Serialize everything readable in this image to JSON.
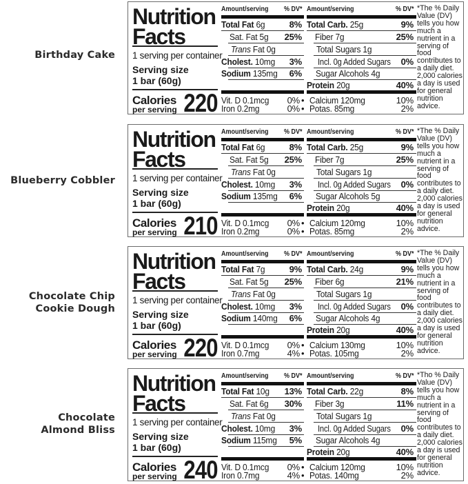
{
  "common": {
    "title_line1": "Nutrition",
    "title_line2": "Facts",
    "servings": "1 serving per container",
    "serving_size_label": "Serving size",
    "serving_size_value": "1 bar (60g)",
    "calories_label": "Calories",
    "per_serving": "per serving",
    "header_amount": "Amount/serving",
    "header_dv": "% DV*",
    "bullet": "•",
    "footnote": "*The % Daily Value (DV) tells you how much a nutrient in a serving of food contributes to a daily diet. 2,000 calories a day is used for general nutrition advice."
  },
  "panels": [
    {
      "flavor": [
        "Birthday Cake"
      ],
      "calories": "220",
      "left_rows": [
        {
          "label": "Total Fat",
          "amount": "6g",
          "dv": "8%"
        },
        {
          "label": "Sat. Fat 5g",
          "amount": "",
          "dv": "25%"
        },
        {
          "label": "Trans",
          "amount": "Fat 0g",
          "dv": ""
        },
        {
          "label": "Cholest.",
          "amount": "10mg",
          "dv": "3%"
        },
        {
          "label": "Sodium",
          "amount": "135mg",
          "dv": "6%"
        }
      ],
      "right_rows": [
        {
          "label": "Total Carb.",
          "amount": "25g",
          "dv": "9%"
        },
        {
          "label": "Fiber 7g",
          "amount": "",
          "dv": "25%"
        },
        {
          "label": "Total Sugars 1g",
          "amount": "",
          "dv": ""
        },
        {
          "label": "Incl. 0g Added Sugars",
          "amount": "",
          "dv": "0%"
        },
        {
          "label": "Sugar Alcohols 4g",
          "amount": "",
          "dv": ""
        },
        {
          "label": "Protein",
          "amount": "20g",
          "dv": "40%"
        }
      ],
      "vitamins": [
        {
          "name": "Vit. D 0.1mcg",
          "dv": "0%"
        },
        {
          "name": "Iron 0.2mg",
          "dv": "0%"
        },
        {
          "name": "Calcium 120mg",
          "dv": "10%"
        },
        {
          "name": "Potas. 85mg",
          "dv": "2%"
        }
      ]
    },
    {
      "flavor": [
        "Blueberry Cobbler"
      ],
      "calories": "210",
      "left_rows": [
        {
          "label": "Total Fat",
          "amount": "6g",
          "dv": "8%"
        },
        {
          "label": "Sat. Fat 5g",
          "amount": "",
          "dv": "25%"
        },
        {
          "label": "Trans",
          "amount": "Fat 0g",
          "dv": ""
        },
        {
          "label": "Cholest.",
          "amount": "10mg",
          "dv": "3%"
        },
        {
          "label": "Sodium",
          "amount": "135mg",
          "dv": "6%"
        }
      ],
      "right_rows": [
        {
          "label": "Total Carb.",
          "amount": "25g",
          "dv": "9%"
        },
        {
          "label": "Fiber 7g",
          "amount": "",
          "dv": "25%"
        },
        {
          "label": "Total Sugars 1g",
          "amount": "",
          "dv": ""
        },
        {
          "label": "Incl. 0g Added Sugars",
          "amount": "",
          "dv": "0%"
        },
        {
          "label": "Sugar Alcohols 5g",
          "amount": "",
          "dv": ""
        },
        {
          "label": "Protein",
          "amount": "20g",
          "dv": "40%"
        }
      ],
      "vitamins": [
        {
          "name": "Vit. D 0.1mcg",
          "dv": "0%"
        },
        {
          "name": "Iron 0.2mg",
          "dv": "0%"
        },
        {
          "name": "Calcium 120mg",
          "dv": "10%"
        },
        {
          "name": "Potas. 85mg",
          "dv": "2%"
        }
      ]
    },
    {
      "flavor": [
        "Chocolate Chip",
        "Cookie Dough"
      ],
      "calories": "220",
      "left_rows": [
        {
          "label": "Total Fat",
          "amount": "7g",
          "dv": "9%"
        },
        {
          "label": "Sat. Fat 5g",
          "amount": "",
          "dv": "25%"
        },
        {
          "label": "Trans",
          "amount": "Fat 0g",
          "dv": ""
        },
        {
          "label": "Cholest.",
          "amount": "10mg",
          "dv": "3%"
        },
        {
          "label": "Sodium",
          "amount": "140mg",
          "dv": "6%"
        }
      ],
      "right_rows": [
        {
          "label": "Total Carb.",
          "amount": "24g",
          "dv": "9%"
        },
        {
          "label": "Fiber 6g",
          "amount": "",
          "dv": "21%"
        },
        {
          "label": "Total Sugars 1g",
          "amount": "",
          "dv": ""
        },
        {
          "label": "Incl. 0g Added Sugars",
          "amount": "",
          "dv": "0%"
        },
        {
          "label": "Sugar Alcohols 4g",
          "amount": "",
          "dv": ""
        },
        {
          "label": "Protein",
          "amount": "20g",
          "dv": "40%"
        }
      ],
      "vitamins": [
        {
          "name": "Vit. D 0.1mcg",
          "dv": "0%"
        },
        {
          "name": "Iron 0.7mg",
          "dv": "4%"
        },
        {
          "name": "Calcium 130mg",
          "dv": "10%"
        },
        {
          "name": "Potas. 105mg",
          "dv": "2%"
        }
      ]
    },
    {
      "flavor": [
        "Chocolate",
        "Almond Bliss"
      ],
      "calories": "240",
      "left_rows": [
        {
          "label": "Total Fat",
          "amount": "10g",
          "dv": "13%"
        },
        {
          "label": "Sat. Fat 6g",
          "amount": "",
          "dv": "30%"
        },
        {
          "label": "Trans",
          "amount": "Fat 0g",
          "dv": ""
        },
        {
          "label": "Cholest.",
          "amount": "10mg",
          "dv": "3%"
        },
        {
          "label": "Sodium",
          "amount": "115mg",
          "dv": "5%"
        }
      ],
      "right_rows": [
        {
          "label": "Total Carb.",
          "amount": "22g",
          "dv": "8%"
        },
        {
          "label": "Fiber 3g",
          "amount": "",
          "dv": "11%"
        },
        {
          "label": "Total Sugars 1g",
          "amount": "",
          "dv": ""
        },
        {
          "label": "Incl. 0g Added Sugars",
          "amount": "",
          "dv": "0%"
        },
        {
          "label": "Sugar Alcohols 4g",
          "amount": "",
          "dv": ""
        },
        {
          "label": "Protein",
          "amount": "20g",
          "dv": "40%"
        }
      ],
      "vitamins": [
        {
          "name": "Vit. D 0.1mcg",
          "dv": "0%"
        },
        {
          "name": "Iron 0.7mg",
          "dv": "4%"
        },
        {
          "name": "Calcium 120mg",
          "dv": "10%"
        },
        {
          "name": "Potas. 140mg",
          "dv": "2%"
        }
      ],
      "footnote_override": "*Tho % Daily Value (DV) tells you how much a nutrient in a serving of food contributes to a daily diet. 2,000 calories a day is used for general nutrition advice."
    }
  ]
}
